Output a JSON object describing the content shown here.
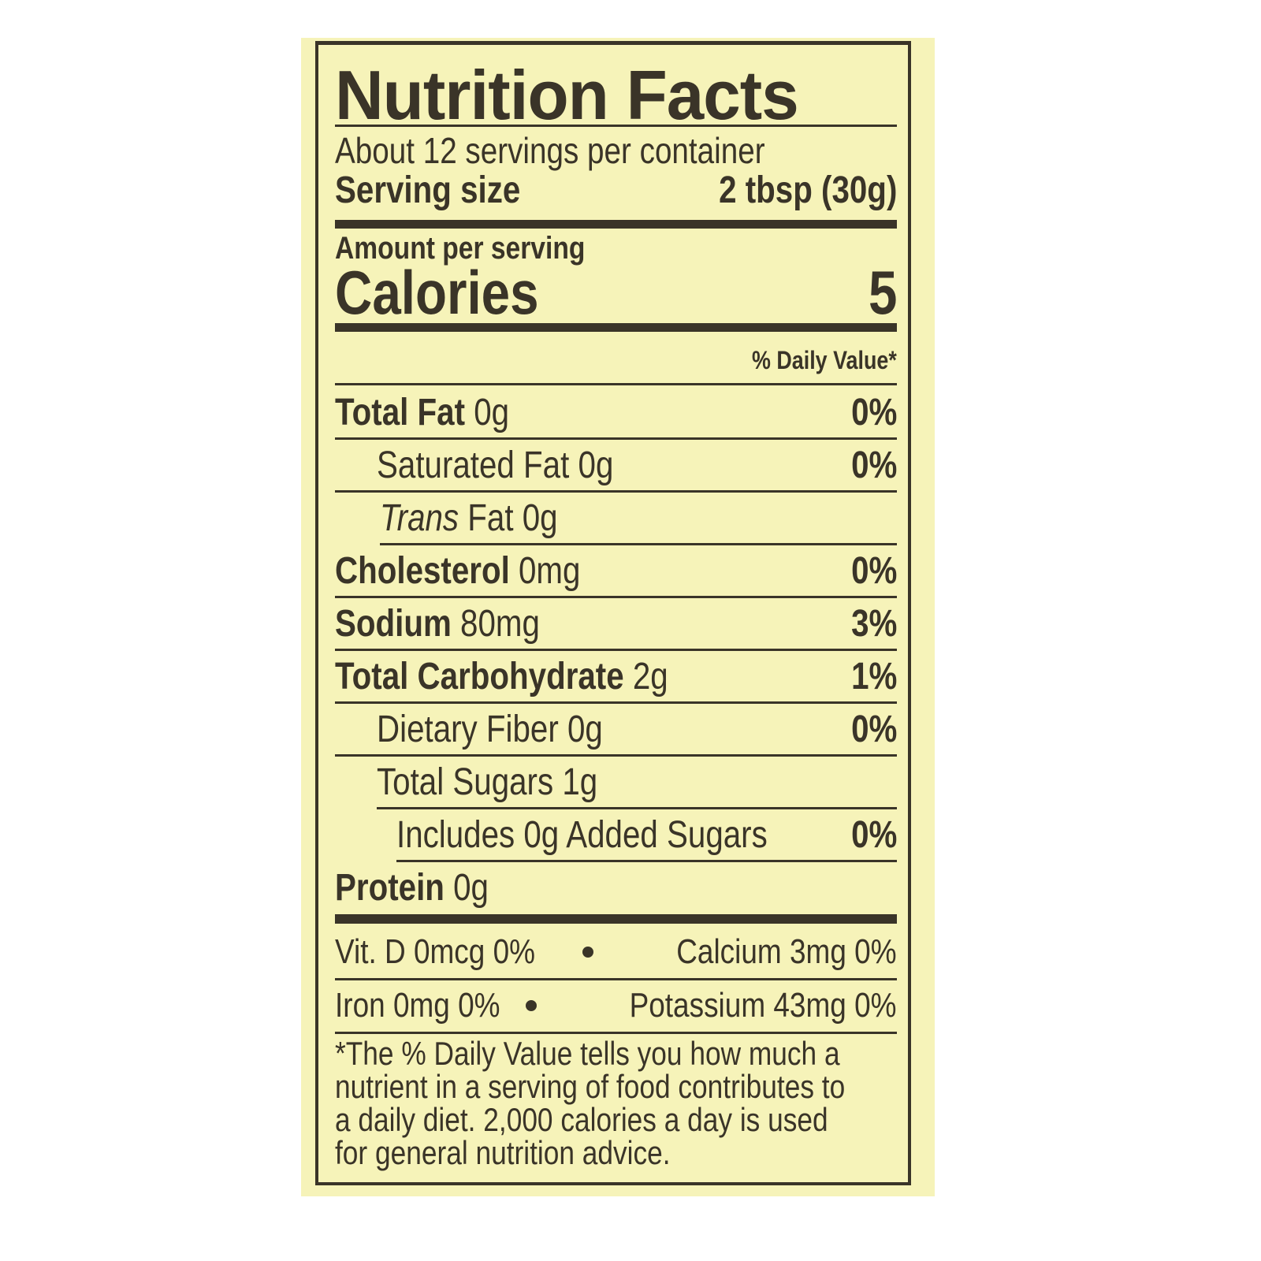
{
  "label": {
    "title": "Nutrition Facts",
    "servings_per_container": "About 12 servings per container",
    "serving_size_label": "Serving size",
    "serving_size_value": "2 tbsp (30g)",
    "amount_per_serving": "Amount per serving",
    "calories_label": "Calories",
    "calories_value": "5",
    "daily_value_header": "% Daily Value*",
    "nutrients": [
      {
        "name": "Total Fat",
        "amount": "0g",
        "dv": "0%"
      },
      {
        "name": "Saturated Fat",
        "amount": "0g",
        "dv": "0%"
      },
      {
        "name_italic": "Trans",
        "name": "Fat",
        "amount": "0g",
        "dv": ""
      },
      {
        "name": "Cholesterol",
        "amount": "0mg",
        "dv": "0%"
      },
      {
        "name": "Sodium",
        "amount": "80mg",
        "dv": "3%"
      },
      {
        "name": "Total Carbohydrate",
        "amount": "2g",
        "dv": "1%"
      },
      {
        "name": "Dietary Fiber",
        "amount": "0g",
        "dv": "0%"
      },
      {
        "name": "Total Sugars",
        "amount": "1g",
        "dv": ""
      },
      {
        "name": "Includes 0g Added Sugars",
        "amount": "",
        "dv": "0%"
      },
      {
        "name": "Protein",
        "amount": "0g",
        "dv": ""
      }
    ],
    "vitamins": [
      {
        "left": "Vit. D 0mcg 0%",
        "right": "Calcium 3mg 0%"
      },
      {
        "left": "Iron 0mg 0%",
        "right": "Potassium 43mg 0%"
      }
    ],
    "footnote": [
      "*The % Daily Value tells you how much a",
      "nutrient in a serving of food contributes to",
      "a daily diet. 2,000 calories a day is used",
      "for general nutrition advice."
    ],
    "colors": {
      "background": "#f6f3b9",
      "ink": "#3a3428"
    }
  }
}
